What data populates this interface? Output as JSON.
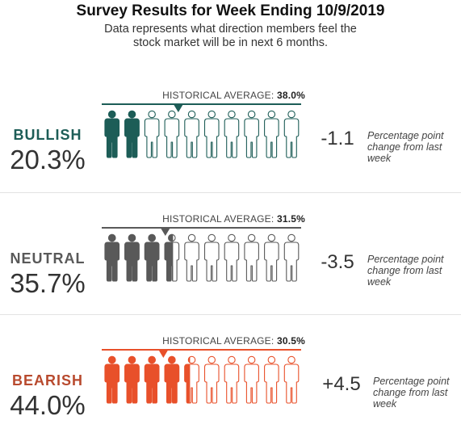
{
  "header": {
    "title": "Survey Results for Week Ending 10/9/2019",
    "subtitle_line1": "Data represents what direction members feel the",
    "subtitle_line2": "stock market will be in next 6 months."
  },
  "chart_data": {
    "type": "pictogram",
    "icons_per_row": 10,
    "hist_prefix": "HISTORICAL AVERAGE: ",
    "change_note": "Percentage point change from last week",
    "series": [
      {
        "key": "bullish",
        "label": "BULLISH",
        "value": 20.3,
        "value_text": "20.3%",
        "historical_average": 38.0,
        "historical_text": "38.0%",
        "change_text": "-1.1",
        "color": "#1d5d57"
      },
      {
        "key": "neutral",
        "label": "NEUTRAL",
        "value": 35.7,
        "value_text": "35.7%",
        "historical_average": 31.5,
        "historical_text": "31.5%",
        "change_text": "-3.5",
        "color": "#595959"
      },
      {
        "key": "bearish",
        "label": "BEARISH",
        "value": 44.0,
        "value_text": "44.0%",
        "historical_average": 30.5,
        "historical_text": "30.5%",
        "change_text": "+4.5",
        "color": "#e8502a",
        "label_color": "#b84a2e"
      }
    ]
  }
}
